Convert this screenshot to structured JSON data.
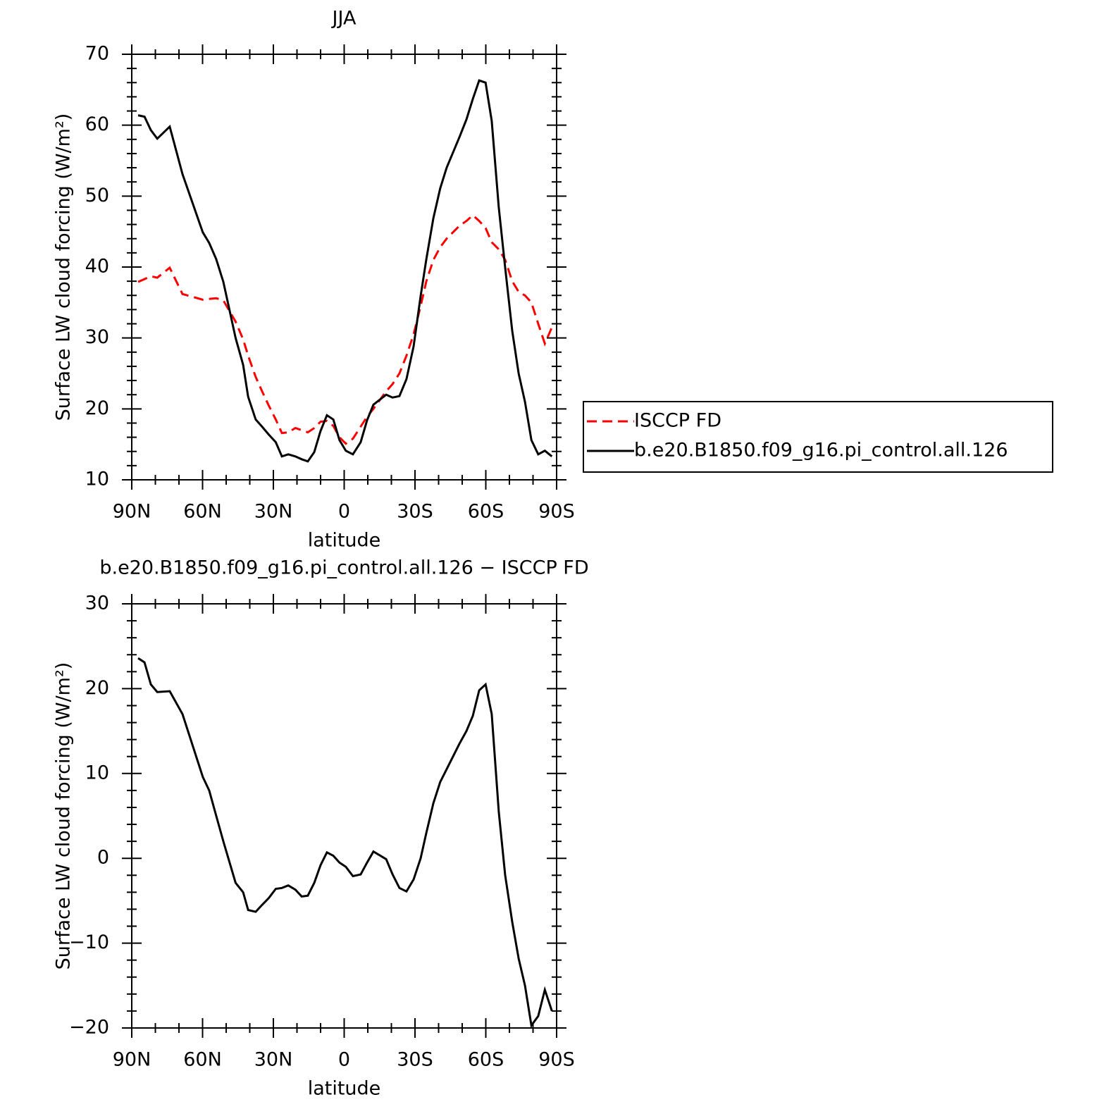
{
  "chart_data": [
    {
      "type": "line",
      "title": "JJA",
      "xlabel": "latitude",
      "ylabel": "Surface LW cloud forcing (W/m²)",
      "x": [
        87.3,
        84.6,
        81.9,
        79.2,
        73.9,
        68.5,
        59.9,
        57.2,
        54.2,
        51.2,
        46.0,
        42.8,
        40.7,
        37.5,
        34.8,
        32.0,
        29.0,
        26.4,
        23.7,
        20.7,
        18.0,
        15.4,
        12.7,
        10.0,
        7.3,
        4.6,
        2.0,
        -0.7,
        -3.7,
        -7.0,
        -9.7,
        -12.4,
        -17.8,
        -20.5,
        -23.4,
        -26.4,
        -29.4,
        -32.4,
        -34.8,
        -37.8,
        -40.7,
        -43.4,
        -48.8,
        -51.8,
        -54.5,
        -57.2,
        -59.9,
        -62.5,
        -65.5,
        -68.2,
        -71.2,
        -73.9,
        -76.6,
        -79.3,
        -82.2,
        -85.0,
        -88.0
      ],
      "series": [
        {
          "name": "ISCCP FD",
          "color": "#ff0000",
          "style": "dashed",
          "values": [
            37.9,
            38.3,
            38.7,
            38.5,
            39.9,
            36.2,
            35.4,
            35.5,
            35.6,
            35.3,
            32.3,
            29.8,
            27.5,
            24.5,
            22.5,
            20.5,
            18.5,
            16.6,
            16.7,
            17.3,
            17.0,
            16.7,
            17.3,
            18.2,
            18.3,
            17.6,
            16.0,
            15.1,
            15.8,
            17.5,
            18.9,
            20.0,
            22.5,
            23.5,
            25.0,
            27.5,
            30.5,
            34.5,
            38.0,
            41.0,
            42.8,
            44.0,
            45.8,
            46.5,
            47.3,
            46.5,
            45.5,
            43.5,
            42.5,
            41.0,
            38.0,
            36.5,
            36.0,
            35.0,
            32.0,
            29.2,
            31.5
          ]
        },
        {
          "name": "b.e20.B1850.f09_g16.pi_control.all.126",
          "color": "#000000",
          "style": "solid",
          "values": [
            61.4,
            61.2,
            59.3,
            58.1,
            59.8,
            53.1,
            44.9,
            43.4,
            41.1,
            37.9,
            30.0,
            26.2,
            21.7,
            18.5,
            17.5,
            16.4,
            15.3,
            13.3,
            13.6,
            13.3,
            12.9,
            12.6,
            13.9,
            16.9,
            19.1,
            18.5,
            15.6,
            14.1,
            13.6,
            15.3,
            18.4,
            20.6,
            22.0,
            21.6,
            21.8,
            24.2,
            28.8,
            35.9,
            41.1,
            46.9,
            51.1,
            54.0,
            58.3,
            60.8,
            63.7,
            66.3,
            66.0,
            60.6,
            48.4,
            39.9,
            31.0,
            25.0,
            21.0,
            15.6,
            13.6,
            14.1,
            13.3
          ]
        }
      ],
      "xlim": [
        90,
        -90
      ],
      "xticks": [
        {
          "value": 90,
          "label": "90N"
        },
        {
          "value": 60,
          "label": "60N"
        },
        {
          "value": 30,
          "label": "30N"
        },
        0,
        {
          "value": -30,
          "label": "30S"
        },
        {
          "value": -60,
          "label": "60S"
        },
        {
          "value": -90,
          "label": "90S"
        }
      ],
      "xminorticks": [
        80,
        70,
        50,
        40,
        20,
        10,
        -10,
        -20,
        -40,
        -50,
        -70,
        -80
      ],
      "ylim": [
        10,
        70
      ],
      "yticks": [
        10,
        20,
        30,
        40,
        50,
        60,
        70
      ],
      "yminorticks": [
        12,
        14,
        16,
        18,
        22,
        24,
        26,
        28,
        32,
        34,
        36,
        38,
        42,
        44,
        46,
        48,
        52,
        54,
        56,
        58,
        62,
        64,
        66,
        68
      ],
      "legend": "right"
    },
    {
      "type": "line",
      "title": "b.e20.B1850.f09_g16.pi_control.all.126 − ISCCP FD",
      "xlabel": "latitude",
      "ylabel": "Surface LW cloud forcing (W/m²)",
      "x": [
        87.3,
        84.6,
        81.9,
        79.2,
        73.9,
        68.5,
        59.9,
        57.2,
        54.2,
        51.2,
        46.0,
        42.8,
        40.7,
        37.5,
        34.8,
        32.0,
        29.0,
        26.4,
        23.7,
        20.7,
        18.0,
        15.4,
        12.7,
        10.0,
        7.3,
        4.6,
        2.0,
        -0.7,
        -3.7,
        -7.0,
        -9.7,
        -12.4,
        -17.8,
        -20.5,
        -23.4,
        -26.4,
        -29.4,
        -32.4,
        -34.8,
        -37.8,
        -40.7,
        -43.4,
        -48.8,
        -51.8,
        -54.5,
        -57.2,
        -59.9,
        -62.5,
        -65.5,
        -68.2,
        -71.2,
        -73.9,
        -76.6,
        -79.3,
        -82.2,
        -85.0,
        -88.0
      ],
      "values": [
        23.6,
        23.1,
        20.5,
        19.6,
        19.7,
        17.0,
        9.6,
        8.0,
        5.0,
        2.0,
        -2.9,
        -4.0,
        -6.1,
        -6.3,
        -5.5,
        -4.7,
        -3.6,
        -3.5,
        -3.2,
        -3.7,
        -4.5,
        -4.4,
        -2.9,
        -0.8,
        0.7,
        0.3,
        -0.5,
        -1.0,
        -2.1,
        -1.9,
        -0.5,
        0.8,
        -0.1,
        -1.9,
        -3.5,
        -3.9,
        -2.5,
        0.0,
        3.0,
        6.5,
        9.0,
        10.5,
        13.5,
        15.0,
        16.8,
        19.8,
        20.5,
        17.0,
        5.5,
        -2.0,
        -7.5,
        -11.8,
        -15.0,
        -19.7,
        -18.6,
        -15.5,
        -18.0
      ],
      "color": "#000000",
      "style": "solid",
      "xlim": [
        90,
        -90
      ],
      "xticks": [
        {
          "value": 90,
          "label": "90N"
        },
        {
          "value": 60,
          "label": "60N"
        },
        {
          "value": 30,
          "label": "30N"
        },
        0,
        {
          "value": -30,
          "label": "30S"
        },
        {
          "value": -60,
          "label": "60S"
        },
        {
          "value": -90,
          "label": "90S"
        }
      ],
      "xminorticks": [
        80,
        70,
        50,
        40,
        20,
        10,
        -10,
        -20,
        -40,
        -50,
        -70,
        -80
      ],
      "ylim": [
        -20,
        30
      ],
      "yticks": [
        {
          "value": -20,
          "label": "−20"
        },
        {
          "value": -10,
          "label": "−10"
        },
        0,
        10,
        20,
        30
      ],
      "yminorticks": [
        -18,
        -16,
        -14,
        -12,
        -8,
        -6,
        -4,
        -2,
        2,
        4,
        6,
        8,
        12,
        14,
        16,
        18,
        22,
        24,
        26,
        28
      ]
    }
  ]
}
